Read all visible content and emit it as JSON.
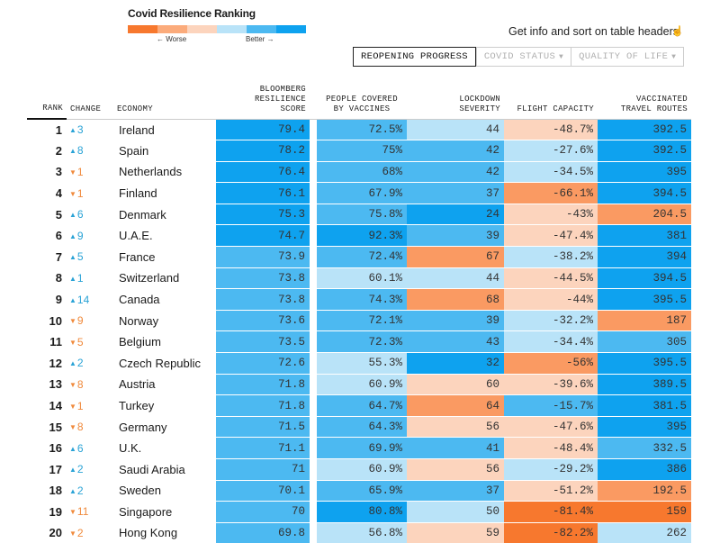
{
  "legend": {
    "title": "Covid Resilience Ranking",
    "worse_label": "← Worse",
    "better_label": "Better →",
    "scale_colors": [
      "#f7782e",
      "#fbab7b",
      "#fcd4bd",
      "#b9e3f8",
      "#4cb9f1",
      "#0ea2ef"
    ]
  },
  "hint": {
    "text": "Get info and sort on table headers",
    "icon": "pointer-hand-icon"
  },
  "tabs": [
    {
      "label": "REOPENING PROGRESS",
      "active": true
    },
    {
      "label": "COVID STATUS",
      "active": false,
      "caret": "▼"
    },
    {
      "label": "QUALITY OF LIFE",
      "active": false,
      "caret": "▼"
    }
  ],
  "table": {
    "headers": {
      "rank": "RANK",
      "change": "CHANGE",
      "economy": "ECONOMY",
      "score_l1": "BLOOMBERG",
      "score_l2": "RESILIENCE",
      "score_l3": "SCORE",
      "vacc_l1": "PEOPLE COVERED",
      "vacc_l2": "BY VACCINES",
      "lock_l1": "LOCKDOWN",
      "lock_l2": "SEVERITY",
      "flight": "FLIGHT CAPACITY",
      "routes_l1": "VACCINATED",
      "routes_l2": "TRAVEL ROUTES"
    },
    "colors": {
      "b1": "#0ea2ef",
      "b2": "#4cb9f1",
      "b3": "#b9e3f8",
      "o3": "#fcd4bd",
      "o2": "#fa9a62",
      "o1": "#f7782e",
      "up": "#2aa3d6",
      "down": "#f08a3c"
    },
    "rows": [
      {
        "rank": "1",
        "dir": "up",
        "change": "3",
        "economy": "Ireland",
        "score": "79.4",
        "score_c": "b1",
        "vacc": "72.5%",
        "vacc_c": "b2",
        "lock": "44",
        "lock_c": "b3",
        "flight": "-48.7%",
        "flight_c": "o3",
        "routes": "392.5",
        "routes_c": "b1"
      },
      {
        "rank": "2",
        "dir": "up",
        "change": "8",
        "economy": "Spain",
        "score": "78.2",
        "score_c": "b1",
        "vacc": "75%",
        "vacc_c": "b2",
        "lock": "42",
        "lock_c": "b2",
        "flight": "-27.6%",
        "flight_c": "b3",
        "routes": "392.5",
        "routes_c": "b1"
      },
      {
        "rank": "3",
        "dir": "down",
        "change": "1",
        "economy": "Netherlands",
        "score": "76.4",
        "score_c": "b1",
        "vacc": "68%",
        "vacc_c": "b2",
        "lock": "42",
        "lock_c": "b2",
        "flight": "-34.5%",
        "flight_c": "b3",
        "routes": "395",
        "routes_c": "b1"
      },
      {
        "rank": "4",
        "dir": "down",
        "change": "1",
        "economy": "Finland",
        "score": "76.1",
        "score_c": "b1",
        "vacc": "67.9%",
        "vacc_c": "b2",
        "lock": "37",
        "lock_c": "b2",
        "flight": "-66.1%",
        "flight_c": "o2",
        "routes": "394.5",
        "routes_c": "b1"
      },
      {
        "rank": "5",
        "dir": "up",
        "change": "6",
        "economy": "Denmark",
        "score": "75.3",
        "score_c": "b1",
        "vacc": "75.8%",
        "vacc_c": "b2",
        "lock": "24",
        "lock_c": "b1",
        "flight": "-43%",
        "flight_c": "o3",
        "routes": "204.5",
        "routes_c": "o2"
      },
      {
        "rank": "6",
        "dir": "up",
        "change": "9",
        "economy": "U.A.E.",
        "score": "74.7",
        "score_c": "b1",
        "vacc": "92.3%",
        "vacc_c": "b1",
        "lock": "39",
        "lock_c": "b2",
        "flight": "-47.4%",
        "flight_c": "o3",
        "routes": "381",
        "routes_c": "b1"
      },
      {
        "rank": "7",
        "dir": "up",
        "change": "5",
        "economy": "France",
        "score": "73.9",
        "score_c": "b2",
        "vacc": "72.4%",
        "vacc_c": "b2",
        "lock": "67",
        "lock_c": "o2",
        "flight": "-38.2%",
        "flight_c": "b3",
        "routes": "394",
        "routes_c": "b1"
      },
      {
        "rank": "8",
        "dir": "up",
        "change": "1",
        "economy": "Switzerland",
        "score": "73.8",
        "score_c": "b2",
        "vacc": "60.1%",
        "vacc_c": "b3",
        "lock": "44",
        "lock_c": "b3",
        "flight": "-44.5%",
        "flight_c": "o3",
        "routes": "394.5",
        "routes_c": "b1"
      },
      {
        "rank": "9",
        "dir": "up",
        "change": "14",
        "economy": "Canada",
        "score": "73.8",
        "score_c": "b2",
        "vacc": "74.3%",
        "vacc_c": "b2",
        "lock": "68",
        "lock_c": "o2",
        "flight": "-44%",
        "flight_c": "o3",
        "routes": "395.5",
        "routes_c": "b1"
      },
      {
        "rank": "10",
        "dir": "down",
        "change": "9",
        "economy": "Norway",
        "score": "73.6",
        "score_c": "b2",
        "vacc": "72.1%",
        "vacc_c": "b2",
        "lock": "39",
        "lock_c": "b2",
        "flight": "-32.2%",
        "flight_c": "b3",
        "routes": "187",
        "routes_c": "o2"
      },
      {
        "rank": "11",
        "dir": "down",
        "change": "5",
        "economy": "Belgium",
        "score": "73.5",
        "score_c": "b2",
        "vacc": "72.3%",
        "vacc_c": "b2",
        "lock": "43",
        "lock_c": "b2",
        "flight": "-34.4%",
        "flight_c": "b3",
        "routes": "305",
        "routes_c": "b2"
      },
      {
        "rank": "12",
        "dir": "up",
        "change": "2",
        "economy": "Czech Republic",
        "score": "72.6",
        "score_c": "b2",
        "vacc": "55.3%",
        "vacc_c": "b3",
        "lock": "32",
        "lock_c": "b1",
        "flight": "-56%",
        "flight_c": "o2",
        "routes": "395.5",
        "routes_c": "b1"
      },
      {
        "rank": "13",
        "dir": "down",
        "change": "8",
        "economy": "Austria",
        "score": "71.8",
        "score_c": "b2",
        "vacc": "60.9%",
        "vacc_c": "b3",
        "lock": "60",
        "lock_c": "o3",
        "flight": "-39.6%",
        "flight_c": "o3",
        "routes": "389.5",
        "routes_c": "b1"
      },
      {
        "rank": "14",
        "dir": "down",
        "change": "1",
        "economy": "Turkey",
        "score": "71.8",
        "score_c": "b2",
        "vacc": "64.7%",
        "vacc_c": "b2",
        "lock": "64",
        "lock_c": "o2",
        "flight": "-15.7%",
        "flight_c": "b2",
        "routes": "381.5",
        "routes_c": "b1"
      },
      {
        "rank": "15",
        "dir": "down",
        "change": "8",
        "economy": "Germany",
        "score": "71.5",
        "score_c": "b2",
        "vacc": "64.3%",
        "vacc_c": "b2",
        "lock": "56",
        "lock_c": "o3",
        "flight": "-47.6%",
        "flight_c": "o3",
        "routes": "395",
        "routes_c": "b1"
      },
      {
        "rank": "16",
        "dir": "up",
        "change": "6",
        "economy": "U.K.",
        "score": "71.1",
        "score_c": "b2",
        "vacc": "69.9%",
        "vacc_c": "b2",
        "lock": "41",
        "lock_c": "b2",
        "flight": "-48.4%",
        "flight_c": "o3",
        "routes": "332.5",
        "routes_c": "b2"
      },
      {
        "rank": "17",
        "dir": "up",
        "change": "2",
        "economy": "Saudi Arabia",
        "score": "71",
        "score_c": "b2",
        "vacc": "60.9%",
        "vacc_c": "b3",
        "lock": "56",
        "lock_c": "o3",
        "flight": "-29.2%",
        "flight_c": "b3",
        "routes": "386",
        "routes_c": "b1"
      },
      {
        "rank": "18",
        "dir": "up",
        "change": "2",
        "economy": "Sweden",
        "score": "70.1",
        "score_c": "b2",
        "vacc": "65.9%",
        "vacc_c": "b2",
        "lock": "37",
        "lock_c": "b2",
        "flight": "-51.2%",
        "flight_c": "o3",
        "routes": "192.5",
        "routes_c": "o2"
      },
      {
        "rank": "19",
        "dir": "down",
        "change": "11",
        "economy": "Singapore",
        "score": "70",
        "score_c": "b2",
        "vacc": "80.8%",
        "vacc_c": "b1",
        "lock": "50",
        "lock_c": "b3",
        "flight": "-81.4%",
        "flight_c": "o1",
        "routes": "159",
        "routes_c": "o1"
      },
      {
        "rank": "20",
        "dir": "down",
        "change": "2",
        "economy": "Hong Kong",
        "score": "69.8",
        "score_c": "b2",
        "vacc": "56.8%",
        "vacc_c": "b3",
        "lock": "59",
        "lock_c": "o3",
        "flight": "-82.2%",
        "flight_c": "o1",
        "routes": "262",
        "routes_c": "b3"
      }
    ]
  }
}
